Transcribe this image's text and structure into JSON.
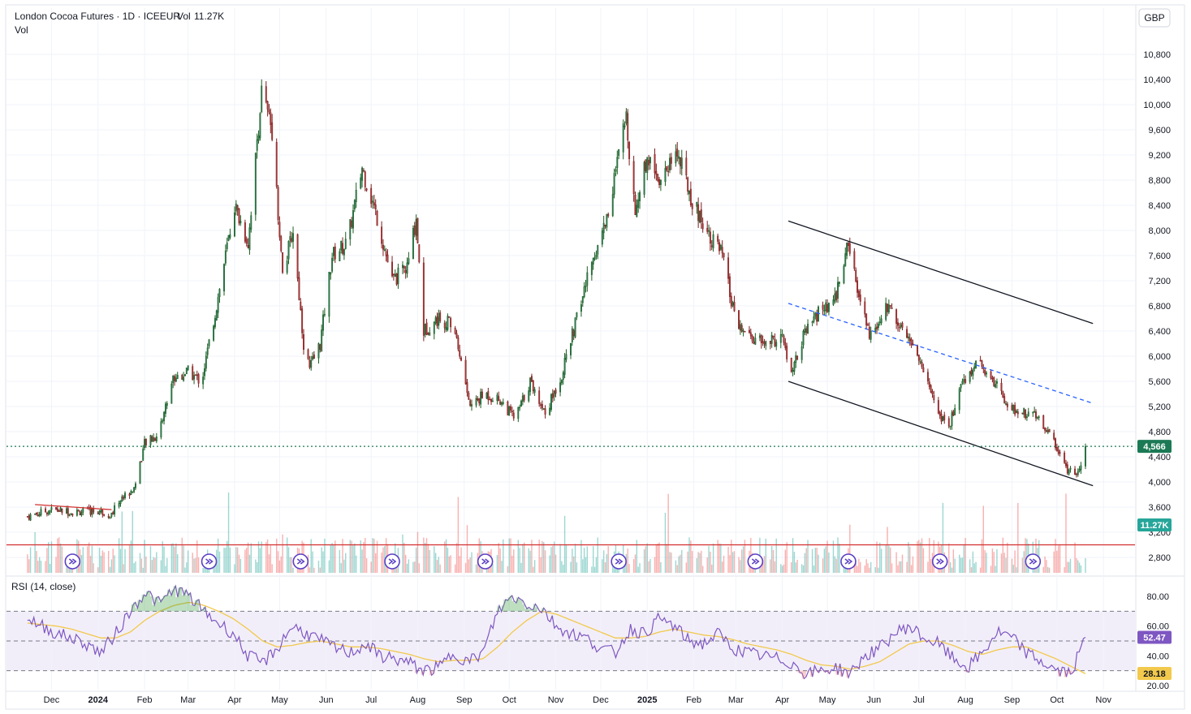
{
  "header": {
    "title": "London Cocoa Futures · 1D · ICEEUR",
    "volume_label": "Vol",
    "volume_value": "11.27K",
    "sub_label": "Vol"
  },
  "currency_button": "GBP",
  "price_badge": "4,566",
  "volume_badge": "11.27K",
  "rsi": {
    "label": "RSI (14, close)",
    "value_badge": "52.47",
    "ma_badge": "28.18"
  },
  "colors": {
    "up": "#26a69a",
    "down": "#ef5350",
    "candle_up": "#1b5e20",
    "candle_down": "#7b1e1e",
    "rsi_line": "#7e57c2",
    "rsi_ma": "#f2c94c",
    "trend_dashed": "#2962ff",
    "support_line": "#d32f2f",
    "last_price": "#1b7a55"
  },
  "chart_data": [
    {
      "type": "candlestick",
      "title": "London Cocoa Futures · 1D · ICEEUR",
      "ylabel": "GBP",
      "ylim": [
        2600,
        11200
      ],
      "y_ticks": [
        "10,800",
        "10,400",
        "10,000",
        "9,600",
        "9,200",
        "8,800",
        "8,400",
        "8,000",
        "7,600",
        "7,200",
        "6,800",
        "6,400",
        "6,000",
        "5,600",
        "5,200",
        "4,800",
        "4,400",
        "4,000",
        "3,600",
        "3,200",
        "2,800"
      ],
      "x_ticks": [
        "Dec",
        "2024",
        "Feb",
        "Mar",
        "Apr",
        "May",
        "Jun",
        "Jul",
        "Aug",
        "Sep",
        "Oct",
        "Nov",
        "Dec",
        "2025",
        "Feb",
        "Mar",
        "Apr",
        "May",
        "Jun",
        "Jul",
        "Aug",
        "Sep",
        "Oct",
        "Nov"
      ],
      "x_ticks_bold": [
        "2024",
        "2025"
      ],
      "last_price": 4566,
      "close_series": [
        {
          "date": "2023-11-15",
          "close": 3450
        },
        {
          "date": "2023-12-01",
          "close": 3560
        },
        {
          "date": "2023-12-15",
          "close": 3520
        },
        {
          "date": "2024-01-01",
          "close": 3540
        },
        {
          "date": "2024-01-10",
          "close": 3480
        },
        {
          "date": "2024-01-15",
          "close": 3700
        },
        {
          "date": "2024-01-25",
          "close": 3900
        },
        {
          "date": "2024-02-01",
          "close": 4600
        },
        {
          "date": "2024-02-10",
          "close": 4750
        },
        {
          "date": "2024-02-20",
          "close": 5650
        },
        {
          "date": "2024-03-01",
          "close": 5750
        },
        {
          "date": "2024-03-10",
          "close": 5600
        },
        {
          "date": "2024-03-20",
          "close": 6800
        },
        {
          "date": "2024-04-01",
          "close": 8400
        },
        {
          "date": "2024-04-10",
          "close": 7800
        },
        {
          "date": "2024-04-19",
          "close": 10200
        },
        {
          "date": "2024-04-26",
          "close": 9600
        },
        {
          "date": "2024-05-03",
          "close": 7300
        },
        {
          "date": "2024-05-10",
          "close": 8000
        },
        {
          "date": "2024-05-17",
          "close": 6200
        },
        {
          "date": "2024-05-21",
          "close": 5800
        },
        {
          "date": "2024-05-28",
          "close": 6200
        },
        {
          "date": "2024-06-05",
          "close": 7600
        },
        {
          "date": "2024-06-15",
          "close": 7800
        },
        {
          "date": "2024-06-25",
          "close": 9000
        },
        {
          "date": "2024-07-05",
          "close": 8200
        },
        {
          "date": "2024-07-15",
          "close": 7200
        },
        {
          "date": "2024-07-25",
          "close": 7400
        },
        {
          "date": "2024-07-31",
          "close": 8200
        },
        {
          "date": "2024-08-05",
          "close": 6400
        },
        {
          "date": "2024-08-15",
          "close": 6600
        },
        {
          "date": "2024-08-25",
          "close": 6500
        },
        {
          "date": "2024-09-05",
          "close": 5200
        },
        {
          "date": "2024-09-15",
          "close": 5400
        },
        {
          "date": "2024-09-25",
          "close": 5300
        },
        {
          "date": "2024-10-05",
          "close": 5000
        },
        {
          "date": "2024-10-15",
          "close": 5600
        },
        {
          "date": "2024-10-25",
          "close": 5100
        },
        {
          "date": "2024-11-05",
          "close": 5700
        },
        {
          "date": "2024-11-15",
          "close": 6600
        },
        {
          "date": "2024-11-25",
          "close": 7500
        },
        {
          "date": "2024-12-05",
          "close": 8200
        },
        {
          "date": "2024-12-18",
          "close": 9800
        },
        {
          "date": "2024-12-24",
          "close": 8300
        },
        {
          "date": "2025-01-01",
          "close": 9200
        },
        {
          "date": "2025-01-10",
          "close": 8800
        },
        {
          "date": "2025-01-20",
          "close": 9300
        },
        {
          "date": "2025-02-01",
          "close": 8400
        },
        {
          "date": "2025-02-10",
          "close": 8000
        },
        {
          "date": "2025-02-20",
          "close": 7600
        },
        {
          "date": "2025-03-01",
          "close": 6500
        },
        {
          "date": "2025-03-10",
          "close": 6300
        },
        {
          "date": "2025-03-20",
          "close": 6200
        },
        {
          "date": "2025-04-01",
          "close": 6300
        },
        {
          "date": "2025-04-07",
          "close": 5700
        },
        {
          "date": "2025-04-15",
          "close": 6300
        },
        {
          "date": "2025-04-25",
          "close": 6700
        },
        {
          "date": "2025-05-05",
          "close": 6800
        },
        {
          "date": "2025-05-15",
          "close": 7800
        },
        {
          "date": "2025-05-22",
          "close": 6900
        },
        {
          "date": "2025-05-30",
          "close": 6300
        },
        {
          "date": "2025-06-10",
          "close": 6800
        },
        {
          "date": "2025-06-20",
          "close": 6500
        },
        {
          "date": "2025-06-30",
          "close": 6000
        },
        {
          "date": "2025-07-10",
          "close": 5400
        },
        {
          "date": "2025-07-20",
          "close": 4800
        },
        {
          "date": "2025-07-30",
          "close": 5600
        },
        {
          "date": "2025-08-10",
          "close": 5900
        },
        {
          "date": "2025-08-20",
          "close": 5600
        },
        {
          "date": "2025-08-30",
          "close": 5200
        },
        {
          "date": "2025-09-10",
          "close": 5100
        },
        {
          "date": "2025-09-20",
          "close": 5000
        },
        {
          "date": "2025-09-30",
          "close": 4600
        },
        {
          "date": "2025-10-08",
          "close": 4200
        },
        {
          "date": "2025-10-15",
          "close": 4150
        },
        {
          "date": "2025-10-20",
          "close": 4566
        }
      ],
      "annotations": [
        {
          "type": "trendline",
          "color": "black",
          "from": {
            "date": "2025-04-05",
            "price": 8150
          },
          "to": {
            "date": "2025-10-25",
            "price": 6520
          }
        },
        {
          "type": "trendline",
          "color": "black",
          "from": {
            "date": "2025-04-05",
            "price": 5600
          },
          "to": {
            "date": "2025-10-25",
            "price": 3940
          }
        },
        {
          "type": "trendline",
          "color": "blue-dashed",
          "from": {
            "date": "2025-04-05",
            "price": 6840
          },
          "to": {
            "date": "2025-10-25",
            "price": 5250
          }
        },
        {
          "type": "horizontal",
          "color": "red",
          "price": 3000
        },
        {
          "type": "trendline",
          "color": "red",
          "from": {
            "date": "2023-11-20",
            "price": 3640
          },
          "to": {
            "date": "2024-01-10",
            "price": 3560
          }
        },
        {
          "type": "horizontal-dotted",
          "color": "green",
          "price": 4566
        }
      ]
    },
    {
      "type": "bar",
      "title": "Vol",
      "last_value": "11.27K"
    },
    {
      "type": "line",
      "title": "RSI (14, close)",
      "ylim": [
        20,
        90
      ],
      "y_ticks": [
        "80.00",
        "60.00",
        "40.00",
        "20.00"
      ],
      "bands": [
        70,
        50,
        30
      ],
      "series": [
        {
          "values": [
            65,
            60,
            55,
            52,
            48,
            42,
            55,
            70,
            83,
            75,
            85,
            80,
            70,
            62,
            55,
            40,
            35,
            45,
            60,
            55,
            50,
            45,
            42,
            48,
            40,
            38,
            35,
            30,
            32,
            42,
            36,
            42,
            70,
            80,
            75,
            72,
            60,
            55,
            52,
            45,
            42,
            58,
            55,
            65,
            60,
            50,
            48,
            55,
            45,
            42,
            40,
            38,
            35,
            28,
            30,
            32,
            28,
            40,
            45,
            55,
            60,
            52,
            48,
            38,
            32,
            42,
            56,
            52,
            42,
            36,
            30,
            28,
            52
          ]
        },
        {
          "values": [
            62,
            61,
            60,
            58,
            55,
            52,
            52,
            56,
            64,
            70,
            74,
            76,
            74,
            70,
            65,
            58,
            50,
            46,
            47,
            49,
            50,
            48,
            46,
            46,
            45,
            43,
            41,
            38,
            36,
            37,
            37,
            38,
            46,
            56,
            64,
            70,
            68,
            64,
            60,
            56,
            52,
            52,
            53,
            56,
            58,
            56,
            54,
            53,
            51,
            48,
            46,
            44,
            41,
            37,
            34,
            33,
            31,
            33,
            36,
            42,
            48,
            50,
            50,
            47,
            43,
            41,
            44,
            46,
            46,
            42,
            38,
            33,
            28
          ]
        }
      ]
    }
  ]
}
